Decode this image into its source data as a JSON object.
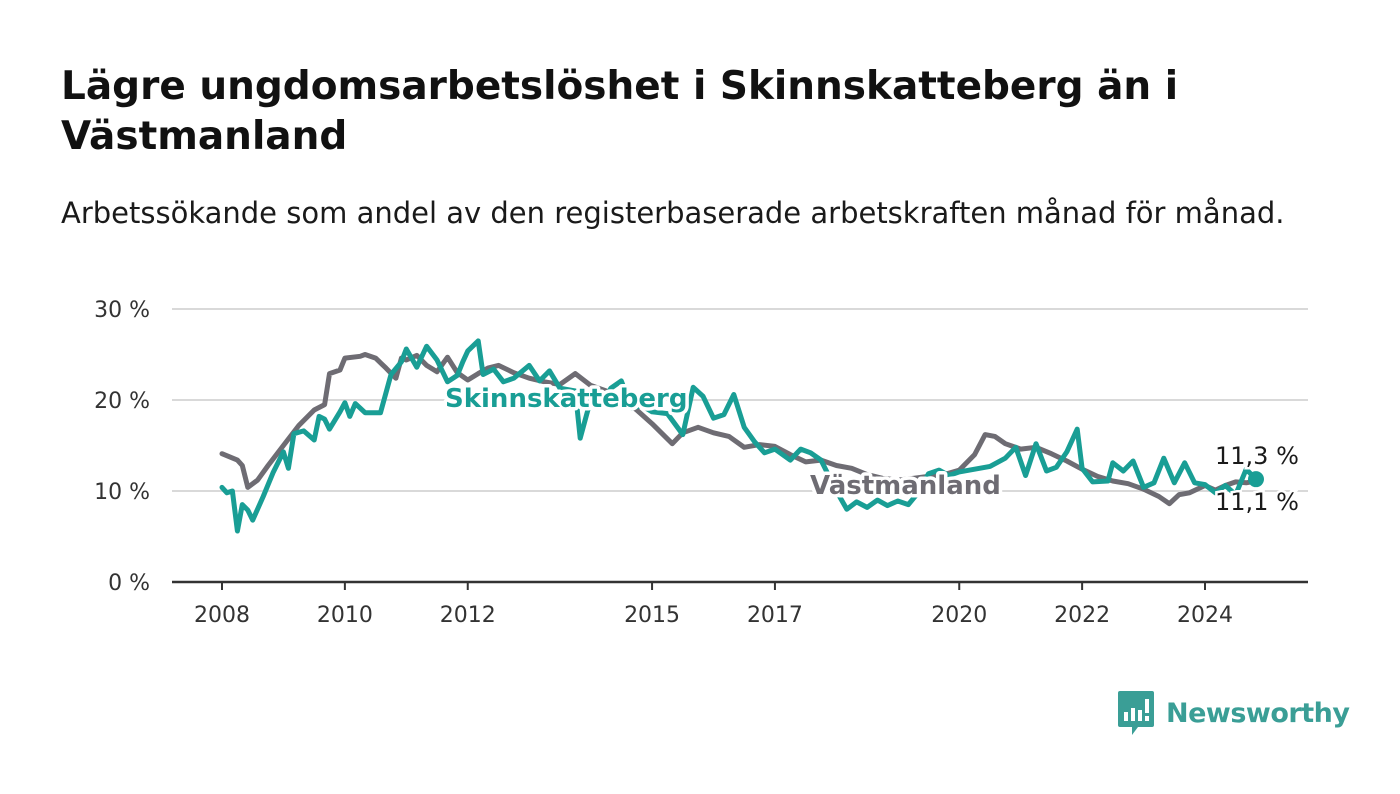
{
  "title": "Lägre ungdomsarbetslöshet i Skinnskatteberg än i Västmanland",
  "subtitle": "Arbetssökande som andel av den registerbaserade arbetskraften månad för månad.",
  "brand": {
    "name": "Newsworthy",
    "color": "#3a9e96"
  },
  "chart_data": {
    "type": "line",
    "title": "Lägre ungdomsarbetslöshet i Skinnskatteberg än i Västmanland",
    "subtitle": "Arbetssökande som andel av den registerbaserade arbetskraften månad för månad.",
    "xlabel": "",
    "ylabel": "",
    "ylim": [
      0,
      30
    ],
    "xlim": [
      2008,
      2024.9
    ],
    "grid": true,
    "legend": "inline labels",
    "y_ticks": [
      0,
      10,
      20,
      30
    ],
    "y_tick_labels": [
      "0 %",
      "10 %",
      "20 %",
      "30 %"
    ],
    "x_ticks": [
      2008,
      2010,
      2012,
      2015,
      2017,
      2020,
      2022,
      2024
    ],
    "x_tick_labels": [
      "2008",
      "2010",
      "2012",
      "2015",
      "2017",
      "2020",
      "2022",
      "2024"
    ],
    "series": [
      {
        "name": "Västmanland",
        "color": "#6e6c73",
        "end_label": "11,1 %",
        "points": [
          [
            2008.0,
            14.1
          ],
          [
            2008.25,
            13.4
          ],
          [
            2008.33,
            12.8
          ],
          [
            2008.42,
            10.4
          ],
          [
            2008.58,
            11.2
          ],
          [
            2008.75,
            12.8
          ],
          [
            2009.0,
            15.0
          ],
          [
            2009.25,
            17.2
          ],
          [
            2009.5,
            18.9
          ],
          [
            2009.67,
            19.5
          ],
          [
            2009.75,
            22.9
          ],
          [
            2009.92,
            23.3
          ],
          [
            2010.0,
            24.6
          ],
          [
            2010.25,
            24.8
          ],
          [
            2010.33,
            25.0
          ],
          [
            2010.5,
            24.6
          ],
          [
            2010.67,
            23.5
          ],
          [
            2010.83,
            22.4
          ],
          [
            2010.92,
            24.6
          ],
          [
            2011.0,
            24.4
          ],
          [
            2011.17,
            24.9
          ],
          [
            2011.33,
            23.8
          ],
          [
            2011.5,
            23.1
          ],
          [
            2011.67,
            24.7
          ],
          [
            2011.83,
            23.0
          ],
          [
            2012.0,
            22.2
          ],
          [
            2012.17,
            22.9
          ],
          [
            2012.33,
            23.5
          ],
          [
            2012.5,
            23.8
          ],
          [
            2012.75,
            23.0
          ],
          [
            2013.0,
            22.4
          ],
          [
            2013.25,
            22.0
          ],
          [
            2013.5,
            21.7
          ],
          [
            2013.75,
            22.9
          ],
          [
            2014.0,
            21.6
          ],
          [
            2014.25,
            21.0
          ],
          [
            2014.5,
            20.1
          ],
          [
            2014.75,
            18.9
          ],
          [
            2015.0,
            17.4
          ],
          [
            2015.33,
            15.2
          ],
          [
            2015.5,
            16.4
          ],
          [
            2015.75,
            17.0
          ],
          [
            2016.0,
            16.4
          ],
          [
            2016.25,
            16.0
          ],
          [
            2016.5,
            14.8
          ],
          [
            2016.75,
            15.1
          ],
          [
            2017.0,
            14.9
          ],
          [
            2017.25,
            14.0
          ],
          [
            2017.5,
            13.2
          ],
          [
            2017.75,
            13.4
          ],
          [
            2018.0,
            12.8
          ],
          [
            2018.25,
            12.5
          ],
          [
            2018.5,
            11.8
          ],
          [
            2018.75,
            11.4
          ],
          [
            2019.0,
            11.2
          ],
          [
            2019.25,
            11.4
          ],
          [
            2019.5,
            11.6
          ],
          [
            2019.75,
            11.8
          ],
          [
            2020.0,
            12.3
          ],
          [
            2020.25,
            14.0
          ],
          [
            2020.42,
            16.2
          ],
          [
            2020.58,
            16.0
          ],
          [
            2020.75,
            15.2
          ],
          [
            2021.0,
            14.6
          ],
          [
            2021.25,
            14.8
          ],
          [
            2021.5,
            14.1
          ],
          [
            2021.75,
            13.3
          ],
          [
            2022.0,
            12.4
          ],
          [
            2022.25,
            11.6
          ],
          [
            2022.5,
            11.1
          ],
          [
            2022.75,
            10.8
          ],
          [
            2023.0,
            10.2
          ],
          [
            2023.25,
            9.4
          ],
          [
            2023.42,
            8.6
          ],
          [
            2023.58,
            9.6
          ],
          [
            2023.75,
            9.8
          ],
          [
            2024.0,
            10.6
          ],
          [
            2024.17,
            10.1
          ],
          [
            2024.33,
            10.6
          ],
          [
            2024.5,
            11.0
          ],
          [
            2024.67,
            10.9
          ],
          [
            2024.83,
            11.1
          ]
        ]
      },
      {
        "name": "Skinnskatteberg",
        "color": "#199e95",
        "end_label": "11,3 %",
        "points": [
          [
            2008.0,
            10.4
          ],
          [
            2008.08,
            9.8
          ],
          [
            2008.17,
            10.0
          ],
          [
            2008.25,
            5.6
          ],
          [
            2008.33,
            8.5
          ],
          [
            2008.42,
            7.9
          ],
          [
            2008.5,
            6.8
          ],
          [
            2008.67,
            9.4
          ],
          [
            2008.83,
            12.0
          ],
          [
            2009.0,
            14.3
          ],
          [
            2009.08,
            12.5
          ],
          [
            2009.17,
            16.3
          ],
          [
            2009.33,
            16.6
          ],
          [
            2009.5,
            15.6
          ],
          [
            2009.58,
            18.2
          ],
          [
            2009.67,
            17.9
          ],
          [
            2009.75,
            16.8
          ],
          [
            2009.92,
            18.7
          ],
          [
            2010.0,
            19.7
          ],
          [
            2010.08,
            18.2
          ],
          [
            2010.17,
            19.6
          ],
          [
            2010.33,
            18.6
          ],
          [
            2010.5,
            18.6
          ],
          [
            2010.58,
            18.6
          ],
          [
            2010.75,
            22.8
          ],
          [
            2010.92,
            24.2
          ],
          [
            2011.0,
            25.6
          ],
          [
            2011.17,
            23.6
          ],
          [
            2011.33,
            25.9
          ],
          [
            2011.5,
            24.4
          ],
          [
            2011.67,
            22.0
          ],
          [
            2011.83,
            22.7
          ],
          [
            2011.92,
            24.2
          ],
          [
            2012.0,
            25.4
          ],
          [
            2012.17,
            26.5
          ],
          [
            2012.25,
            22.8
          ],
          [
            2012.42,
            23.4
          ],
          [
            2012.58,
            22.0
          ],
          [
            2012.75,
            22.4
          ],
          [
            2013.0,
            23.8
          ],
          [
            2013.17,
            22.1
          ],
          [
            2013.33,
            23.2
          ],
          [
            2013.5,
            21.3
          ],
          [
            2013.75,
            21.0
          ],
          [
            2013.83,
            15.8
          ],
          [
            2014.0,
            20.0
          ],
          [
            2014.17,
            19.5
          ],
          [
            2014.33,
            21.3
          ],
          [
            2014.5,
            22.1
          ],
          [
            2014.67,
            19.1
          ],
          [
            2014.83,
            19.4
          ],
          [
            2015.0,
            18.7
          ],
          [
            2015.25,
            18.5
          ],
          [
            2015.5,
            16.2
          ],
          [
            2015.67,
            21.4
          ],
          [
            2015.83,
            20.4
          ],
          [
            2016.0,
            18.0
          ],
          [
            2016.17,
            18.4
          ],
          [
            2016.33,
            20.6
          ],
          [
            2016.5,
            17.0
          ],
          [
            2016.67,
            15.4
          ],
          [
            2016.83,
            14.2
          ],
          [
            2017.0,
            14.6
          ],
          [
            2017.25,
            13.4
          ],
          [
            2017.42,
            14.6
          ],
          [
            2017.58,
            14.2
          ],
          [
            2017.75,
            13.4
          ],
          [
            2018.0,
            10.0
          ],
          [
            2018.17,
            8.0
          ],
          [
            2018.33,
            8.8
          ],
          [
            2018.5,
            8.2
          ],
          [
            2018.67,
            9.0
          ],
          [
            2018.83,
            8.4
          ],
          [
            2019.0,
            8.9
          ],
          [
            2019.17,
            8.5
          ],
          [
            2019.33,
            9.8
          ],
          [
            2019.5,
            11.9
          ],
          [
            2019.67,
            12.3
          ],
          [
            2019.83,
            11.7
          ],
          [
            2020.0,
            12.1
          ],
          [
            2020.25,
            12.4
          ],
          [
            2020.5,
            12.7
          ],
          [
            2020.75,
            13.6
          ],
          [
            2020.92,
            14.8
          ],
          [
            2021.08,
            11.7
          ],
          [
            2021.25,
            15.2
          ],
          [
            2021.42,
            12.2
          ],
          [
            2021.58,
            12.6
          ],
          [
            2021.75,
            14.3
          ],
          [
            2021.92,
            16.8
          ],
          [
            2022.0,
            12.5
          ],
          [
            2022.17,
            11.0
          ],
          [
            2022.42,
            11.1
          ],
          [
            2022.5,
            13.1
          ],
          [
            2022.67,
            12.2
          ],
          [
            2022.83,
            13.3
          ],
          [
            2023.0,
            10.4
          ],
          [
            2023.17,
            10.9
          ],
          [
            2023.33,
            13.6
          ],
          [
            2023.5,
            10.9
          ],
          [
            2023.67,
            13.1
          ],
          [
            2023.83,
            10.9
          ],
          [
            2024.0,
            10.7
          ],
          [
            2024.17,
            9.8
          ],
          [
            2024.33,
            10.6
          ],
          [
            2024.5,
            9.6
          ],
          [
            2024.67,
            12.4
          ],
          [
            2024.83,
            11.3
          ]
        ]
      }
    ]
  }
}
